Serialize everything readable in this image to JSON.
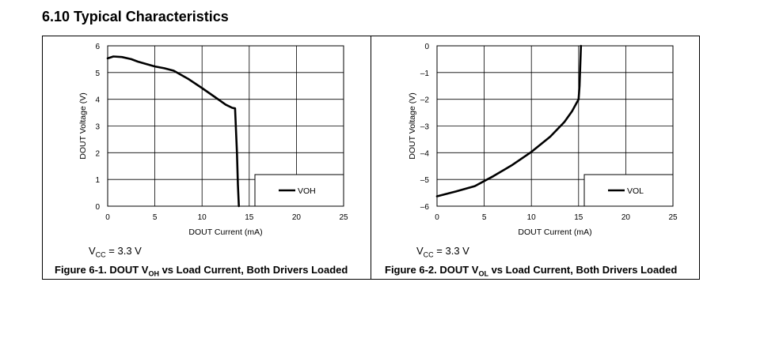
{
  "section": {
    "title": "6.10 Typical Characteristics"
  },
  "figures": [
    {
      "cond": {
        "prefix": "V",
        "sub": "CC",
        "rest": " = 3.3 V"
      },
      "caption": {
        "prefix": "Figure 6-1. DOUT V",
        "sub": "OH",
        "rest": " vs Load Current, Both Drivers Loaded"
      }
    },
    {
      "cond": {
        "prefix": "V",
        "sub": "CC",
        "rest": " = 3.3 V"
      },
      "caption": {
        "prefix": "Figure 6-2. DOUT V",
        "sub": "OL",
        "rest": " vs Load Current, Both Drivers Loaded"
      }
    }
  ],
  "chart_data": [
    {
      "type": "line",
      "title": "Figure 6-1. DOUT VOH vs Load Current, Both Drivers Loaded",
      "xlabel": "DOUT Current (mA)",
      "ylabel": "DOUT Voltage (V)",
      "xlim": [
        0,
        25
      ],
      "ylim": [
        0,
        6
      ],
      "xticks": [
        "0",
        "5",
        "10",
        "15",
        "20",
        "25"
      ],
      "yticks": [
        "0",
        "1",
        "2",
        "3",
        "4",
        "5",
        "6"
      ],
      "grid": true,
      "legend_position": "bottom-right",
      "series": [
        {
          "name": "VOH",
          "x": [
            0,
            0.6,
            1.5,
            2.5,
            3.2,
            4.0,
            5.0,
            6.0,
            7.0,
            8.5,
            10.0,
            11.5,
            12.5,
            13.2,
            13.5,
            13.7,
            13.8,
            13.9
          ],
          "y": [
            5.53,
            5.6,
            5.58,
            5.5,
            5.41,
            5.33,
            5.23,
            5.16,
            5.07,
            4.77,
            4.42,
            4.05,
            3.8,
            3.68,
            3.66,
            2.0,
            0.8,
            0.0
          ]
        }
      ]
    },
    {
      "type": "line",
      "title": "Figure 6-2. DOUT VOL vs Load Current, Both Drivers Loaded",
      "xlabel": "DOUT Current (mA)",
      "ylabel": "DOUT Voltage (V)",
      "xlim": [
        0,
        25
      ],
      "ylim": [
        -6,
        0
      ],
      "xticks": [
        "0",
        "5",
        "10",
        "15",
        "20",
        "25"
      ],
      "yticks": [
        "0",
        "–1",
        "–2",
        "–3",
        "–4",
        "–5",
        "–6"
      ],
      "grid": true,
      "legend_position": "bottom-right",
      "series": [
        {
          "name": "VOL",
          "x": [
            0,
            2.0,
            4.0,
            6.0,
            8.0,
            10.0,
            12.0,
            13.5,
            14.3,
            15.0,
            15.1,
            15.2,
            15.25
          ],
          "y": [
            -5.63,
            -5.45,
            -5.25,
            -4.87,
            -4.45,
            -3.97,
            -3.4,
            -2.85,
            -2.45,
            -2.0,
            -1.5,
            -0.5,
            0.0
          ]
        }
      ]
    }
  ]
}
